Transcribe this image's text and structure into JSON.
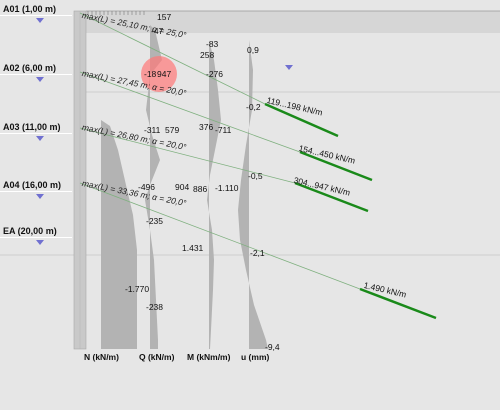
{
  "levels": [
    {
      "label": "A01 (1,00 m)"
    },
    {
      "label": "A02 (6,00 m)"
    },
    {
      "label": "A03 (11,00 m)"
    },
    {
      "label": "A04 (16,00 m)"
    },
    {
      "label": "EA (20,00 m)"
    }
  ],
  "anchor_props": [
    "max(L) = 25,10 m; α = 25,0°",
    "max(L) = 27,45 m; α = 20,0°",
    "max(L) = 26,80 m; α = 20,0°",
    "max(L) = 33,36 m; α = 20,0°"
  ],
  "anchor_loads": [
    "119...198 kN/m",
    "154...450 kN/m",
    "304...947 kN/m",
    "1.490 kN/m"
  ],
  "values": {
    "v157": "157",
    "vm47": "-47",
    "vm83": "-83",
    "v258": "258",
    "v09": "0,9",
    "vm276": "-276",
    "vm18": "-18",
    "v947": "947",
    "vm02": "-0,2",
    "vm311": "-311",
    "v579": "579",
    "v376": "376",
    "vm711": "-711",
    "vm05": "-0,5",
    "vm496": "-496",
    "v904": "904",
    "v886": "886",
    "vm1110": "-1.110",
    "vm235": "-235",
    "v1431": "1.431",
    "vm21": "-2,1",
    "vm1770": "-1.770",
    "vm238": "-238",
    "vm94": "-9,4"
  },
  "axes": [
    "N (kN/m)",
    "Q (kN/m)",
    "M (kNm/m)",
    "u (mm)"
  ],
  "colors": {
    "anchor": "#1a8a1a",
    "thin_anchor": "#7fb07f",
    "diagram": "#b3b3b3",
    "wall": "#c9c9c9"
  }
}
